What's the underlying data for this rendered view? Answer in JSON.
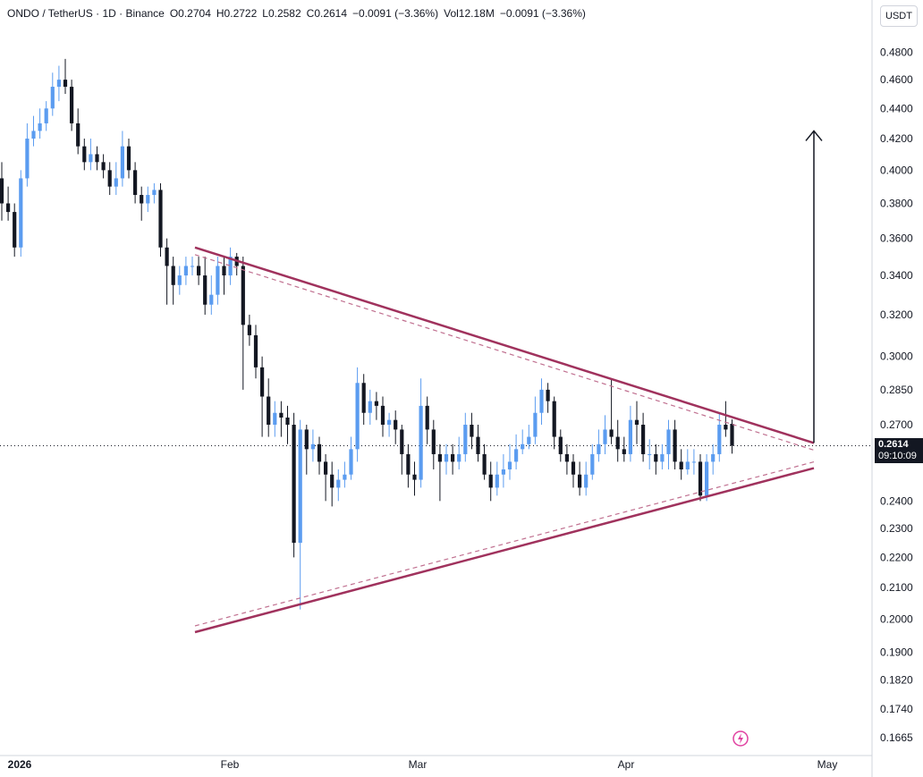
{
  "header": {
    "symbol": "ONDO / TetherUS · 1D · Binance",
    "open": "O0.2704",
    "high": "H0.2722",
    "low": "L0.2582",
    "close": "C0.2614",
    "change": "−0.0091 (−3.36%)",
    "volume": "Vol12.18M",
    "vol_change": "−0.0091 (−3.36%)"
  },
  "unit": "USDT",
  "last_price": {
    "value": "0.2614",
    "countdown": "09:10:09"
  },
  "colors": {
    "up": "#5b9cf0",
    "down": "#131722",
    "trendline": "#a0325d",
    "dashed": "#c07090",
    "arrow": "#131722",
    "grid_axis": "#d1d4dc"
  },
  "chart_data": {
    "type": "candlestick",
    "y_scale": "log",
    "ylim": [
      0.162,
      0.495
    ],
    "y_ticks": [
      "0.4800",
      "0.4600",
      "0.4400",
      "0.4200",
      "0.4000",
      "0.3800",
      "0.3600",
      "0.3400",
      "0.3200",
      "0.3000",
      "0.2850",
      "0.2700",
      "0.2400",
      "0.2300",
      "0.2200",
      "0.2100",
      "0.2000",
      "0.1900",
      "0.1820",
      "0.1740",
      "0.1665"
    ],
    "x_ticks": [
      "2026",
      "Feb",
      "Mar",
      "Apr",
      "May"
    ],
    "candles": [
      [
        0.395,
        0.38,
        0.405,
        0.37
      ],
      [
        0.38,
        0.375,
        0.39,
        0.37
      ],
      [
        0.375,
        0.355,
        0.38,
        0.35
      ],
      [
        0.355,
        0.395,
        0.4,
        0.35
      ],
      [
        0.395,
        0.42,
        0.43,
        0.39
      ],
      [
        0.42,
        0.425,
        0.435,
        0.415
      ],
      [
        0.425,
        0.43,
        0.44,
        0.42
      ],
      [
        0.43,
        0.44,
        0.445,
        0.425
      ],
      [
        0.44,
        0.455,
        0.465,
        0.435
      ],
      [
        0.455,
        0.46,
        0.47,
        0.445
      ],
      [
        0.46,
        0.455,
        0.475,
        0.45
      ],
      [
        0.455,
        0.43,
        0.46,
        0.425
      ],
      [
        0.43,
        0.415,
        0.44,
        0.41
      ],
      [
        0.415,
        0.405,
        0.42,
        0.4
      ],
      [
        0.405,
        0.41,
        0.42,
        0.4
      ],
      [
        0.41,
        0.405,
        0.415,
        0.4
      ],
      [
        0.405,
        0.4,
        0.41,
        0.395
      ],
      [
        0.4,
        0.39,
        0.405,
        0.385
      ],
      [
        0.39,
        0.395,
        0.405,
        0.385
      ],
      [
        0.395,
        0.415,
        0.425,
        0.39
      ],
      [
        0.415,
        0.4,
        0.42,
        0.395
      ],
      [
        0.4,
        0.385,
        0.405,
        0.38
      ],
      [
        0.385,
        0.38,
        0.39,
        0.37
      ],
      [
        0.38,
        0.385,
        0.39,
        0.375
      ],
      [
        0.385,
        0.388,
        0.392,
        0.38
      ],
      [
        0.388,
        0.355,
        0.392,
        0.35
      ],
      [
        0.355,
        0.345,
        0.36,
        0.325
      ],
      [
        0.345,
        0.335,
        0.35,
        0.325
      ],
      [
        0.335,
        0.34,
        0.345,
        0.33
      ],
      [
        0.34,
        0.345,
        0.35,
        0.335
      ],
      [
        0.345,
        0.345,
        0.35,
        0.34
      ],
      [
        0.345,
        0.34,
        0.35,
        0.335
      ],
      [
        0.34,
        0.325,
        0.35,
        0.32
      ],
      [
        0.325,
        0.33,
        0.34,
        0.32
      ],
      [
        0.33,
        0.345,
        0.35,
        0.325
      ],
      [
        0.345,
        0.34,
        0.35,
        0.33
      ],
      [
        0.34,
        0.35,
        0.355,
        0.335
      ],
      [
        0.35,
        0.345,
        0.352,
        0.34
      ],
      [
        0.345,
        0.315,
        0.35,
        0.285
      ],
      [
        0.315,
        0.31,
        0.32,
        0.305
      ],
      [
        0.31,
        0.295,
        0.315,
        0.29
      ],
      [
        0.295,
        0.282,
        0.3,
        0.265
      ],
      [
        0.282,
        0.27,
        0.29,
        0.265
      ],
      [
        0.27,
        0.275,
        0.28,
        0.265
      ],
      [
        0.275,
        0.273,
        0.28,
        0.265
      ],
      [
        0.273,
        0.27,
        0.278,
        0.262
      ],
      [
        0.27,
        0.225,
        0.275,
        0.22
      ],
      [
        0.225,
        0.268,
        0.272,
        0.203
      ],
      [
        0.268,
        0.26,
        0.27,
        0.25
      ],
      [
        0.26,
        0.262,
        0.268,
        0.255
      ],
      [
        0.262,
        0.255,
        0.265,
        0.25
      ],
      [
        0.255,
        0.25,
        0.258,
        0.24
      ],
      [
        0.25,
        0.245,
        0.255,
        0.238
      ],
      [
        0.245,
        0.248,
        0.252,
        0.24
      ],
      [
        0.248,
        0.25,
        0.255,
        0.245
      ],
      [
        0.25,
        0.26,
        0.265,
        0.248
      ],
      [
        0.26,
        0.288,
        0.295,
        0.255
      ],
      [
        0.288,
        0.275,
        0.292,
        0.27
      ],
      [
        0.275,
        0.28,
        0.285,
        0.27
      ],
      [
        0.28,
        0.278,
        0.284,
        0.272
      ],
      [
        0.278,
        0.27,
        0.282,
        0.265
      ],
      [
        0.27,
        0.272,
        0.275,
        0.265
      ],
      [
        0.272,
        0.268,
        0.276,
        0.262
      ],
      [
        0.268,
        0.258,
        0.27,
        0.25
      ],
      [
        0.258,
        0.25,
        0.262,
        0.245
      ],
      [
        0.25,
        0.248,
        0.255,
        0.242
      ],
      [
        0.248,
        0.278,
        0.29,
        0.245
      ],
      [
        0.278,
        0.268,
        0.282,
        0.262
      ],
      [
        0.268,
        0.258,
        0.272,
        0.252
      ],
      [
        0.258,
        0.255,
        0.262,
        0.24
      ],
      [
        0.255,
        0.258,
        0.262,
        0.25
      ],
      [
        0.258,
        0.255,
        0.262,
        0.25
      ],
      [
        0.255,
        0.258,
        0.265,
        0.252
      ],
      [
        0.258,
        0.27,
        0.275,
        0.255
      ],
      [
        0.27,
        0.265,
        0.275,
        0.26
      ],
      [
        0.265,
        0.258,
        0.27,
        0.255
      ],
      [
        0.258,
        0.25,
        0.262,
        0.248
      ],
      [
        0.25,
        0.245,
        0.255,
        0.24
      ],
      [
        0.245,
        0.25,
        0.255,
        0.242
      ],
      [
        0.25,
        0.252,
        0.258,
        0.245
      ],
      [
        0.252,
        0.255,
        0.262,
        0.248
      ],
      [
        0.255,
        0.26,
        0.266,
        0.252
      ],
      [
        0.26,
        0.262,
        0.268,
        0.258
      ],
      [
        0.262,
        0.265,
        0.27,
        0.26
      ],
      [
        0.265,
        0.275,
        0.282,
        0.262
      ],
      [
        0.275,
        0.285,
        0.29,
        0.27
      ],
      [
        0.285,
        0.28,
        0.288,
        0.275
      ],
      [
        0.28,
        0.265,
        0.282,
        0.26
      ],
      [
        0.265,
        0.258,
        0.268,
        0.255
      ],
      [
        0.258,
        0.255,
        0.262,
        0.25
      ],
      [
        0.255,
        0.25,
        0.258,
        0.245
      ],
      [
        0.25,
        0.245,
        0.255,
        0.242
      ],
      [
        0.245,
        0.25,
        0.255,
        0.242
      ],
      [
        0.25,
        0.258,
        0.262,
        0.248
      ],
      [
        0.258,
        0.262,
        0.268,
        0.255
      ],
      [
        0.262,
        0.268,
        0.274,
        0.258
      ],
      [
        0.268,
        0.265,
        0.29,
        0.262
      ],
      [
        0.265,
        0.26,
        0.272,
        0.255
      ],
      [
        0.26,
        0.258,
        0.265,
        0.255
      ],
      [
        0.258,
        0.272,
        0.278,
        0.255
      ],
      [
        0.272,
        0.27,
        0.28,
        0.262
      ],
      [
        0.27,
        0.258,
        0.275,
        0.255
      ],
      [
        0.258,
        0.258,
        0.264,
        0.252
      ],
      [
        0.258,
        0.255,
        0.262,
        0.25
      ],
      [
        0.255,
        0.258,
        0.262,
        0.252
      ],
      [
        0.258,
        0.268,
        0.272,
        0.252
      ],
      [
        0.268,
        0.255,
        0.272,
        0.252
      ],
      [
        0.255,
        0.252,
        0.26,
        0.248
      ],
      [
        0.252,
        0.255,
        0.26,
        0.25
      ],
      [
        0.255,
        0.255,
        0.26,
        0.25
      ],
      [
        0.255,
        0.242,
        0.258,
        0.24
      ],
      [
        0.242,
        0.255,
        0.258,
        0.24
      ],
      [
        0.255,
        0.258,
        0.262,
        0.25
      ],
      [
        0.258,
        0.27,
        0.275,
        0.255
      ],
      [
        0.27,
        0.268,
        0.28,
        0.265
      ],
      [
        0.2704,
        0.2614,
        0.2722,
        0.2582
      ]
    ],
    "candle_x_start": 0,
    "candle_x_step": 1,
    "last_price": 0.2614,
    "trendlines": [
      {
        "from": [
          0,
          0.355
        ],
        "to": [
          1,
          0.2625
        ]
      },
      {
        "from": [
          0,
          0.196
        ],
        "to": [
          1,
          0.2525
        ]
      }
    ],
    "projection_arrow": {
      "from_price": 0.2625,
      "to_price": 0.425
    }
  }
}
